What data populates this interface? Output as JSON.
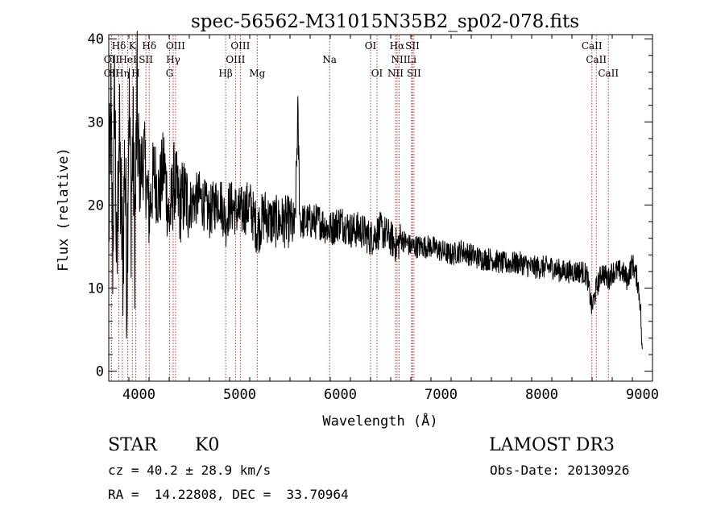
{
  "chart_data": {
    "type": "line",
    "title": "spec-56562-M31015N35B2_sp02-078.fits",
    "xlabel": "Wavelength (Å)",
    "ylabel": "Flux (relative)",
    "xlim": [
      3700,
      9100
    ],
    "ylim": [
      -1.2,
      40.5
    ],
    "x_ticks": [
      4000,
      5000,
      6000,
      7000,
      8000,
      9000
    ],
    "y_ticks": [
      0,
      10,
      20,
      30,
      40
    ],
    "grid": false,
    "series": [
      {
        "name": "flux",
        "x": [
          3700,
          3720,
          3740,
          3760,
          3780,
          3800,
          3820,
          3840,
          3860,
          3880,
          3900,
          3920,
          3940,
          3960,
          3980,
          4000,
          4050,
          4100,
          4150,
          4200,
          4250,
          4300,
          4350,
          4400,
          4450,
          4500,
          4600,
          4700,
          4800,
          4862,
          4900,
          5000,
          5100,
          5175,
          5250,
          5300,
          5400,
          5500,
          5550,
          5577,
          5600,
          5700,
          5800,
          5893,
          6000,
          6100,
          6200,
          6300,
          6400,
          6500,
          6563,
          6600,
          6700,
          6800,
          6900,
          7000,
          7100,
          7200,
          7300,
          7400,
          7500,
          7600,
          7700,
          7800,
          7900,
          8000,
          8100,
          8200,
          8300,
          8400,
          8450,
          8498,
          8542,
          8600,
          8662,
          8700,
          8800,
          8850,
          8900,
          8950,
          8980,
          9000
        ],
        "values": [
          17,
          31,
          14,
          35,
          9,
          30,
          20,
          13,
          27,
          10,
          34,
          19,
          28,
          15,
          33,
          23,
          26,
          19,
          24,
          21,
          25,
          18,
          23,
          20,
          21,
          20,
          21,
          19,
          21,
          18,
          20,
          19,
          20,
          17,
          19,
          18,
          18,
          18,
          17,
          31,
          18,
          18,
          18,
          17,
          18,
          17,
          17,
          16,
          17,
          16,
          15,
          16,
          15,
          15,
          15,
          14.5,
          14,
          14.5,
          14,
          13.5,
          13.5,
          13,
          13,
          13,
          12.5,
          12.5,
          12.5,
          12,
          12,
          12,
          11.5,
          7.5,
          10,
          12,
          11,
          12,
          12,
          11,
          13,
          11,
          8,
          1
        ]
      }
    ],
    "line_markers": [
      {
        "label": "Hδ",
        "x": 3800,
        "row": 0
      },
      {
        "label": "K",
        "x": 3934,
        "row": 0
      },
      {
        "label": "Hδ",
        "x": 4102,
        "row": 0
      },
      {
        "label": "OIII",
        "x": 4363,
        "row": 0
      },
      {
        "label": "OIII",
        "x": 5007,
        "row": 0
      },
      {
        "label": "OI",
        "x": 6300,
        "row": 0
      },
      {
        "label": "Hα",
        "x": 6563,
        "row": 0
      },
      {
        "label": "SII",
        "x": 6716,
        "row": 0
      },
      {
        "label": "CaII",
        "x": 8498,
        "row": 0
      },
      {
        "label": "OII",
        "x": 3727,
        "row": 1
      },
      {
        "label": "HeI",
        "x": 3889,
        "row": 1
      },
      {
        "label": "SII",
        "x": 4069,
        "row": 1
      },
      {
        "label": "Hγ",
        "x": 4340,
        "row": 1
      },
      {
        "label": "OIII",
        "x": 4959,
        "row": 1
      },
      {
        "label": "Na",
        "x": 5893,
        "row": 1
      },
      {
        "label": "NII",
        "x": 6584,
        "row": 1
      },
      {
        "label": "Li",
        "x": 6708,
        "row": 1
      },
      {
        "label": "CaII",
        "x": 8542,
        "row": 1
      },
      {
        "label": "OII",
        "x": 3727,
        "row": 2
      },
      {
        "label": "Hη",
        "x": 3835,
        "row": 2
      },
      {
        "label": "H",
        "x": 3968,
        "row": 2
      },
      {
        "label": "G",
        "x": 4304,
        "row": 2
      },
      {
        "label": "Hβ",
        "x": 4861,
        "row": 2
      },
      {
        "label": "Mg",
        "x": 5175,
        "row": 2
      },
      {
        "label": "OI",
        "x": 6364,
        "row": 2
      },
      {
        "label": "NII",
        "x": 6548,
        "row": 2
      },
      {
        "label": "SII",
        "x": 6731,
        "row": 2
      },
      {
        "label": "CaII",
        "x": 8662,
        "row": 2
      }
    ]
  },
  "info": {
    "class_label": "STAR",
    "subclass": "K0",
    "survey": "LAMOST DR3",
    "redshift_line": "cz = 40.2 ± 28.9 km/s",
    "obs_date_line": "Obs-Date: 20130926",
    "coords_line": "RA =  14.22808, DEC =  33.70964"
  },
  "colors": {
    "axis": "#000000",
    "spectrum": "#000000",
    "marker_line": "#c0392b"
  }
}
